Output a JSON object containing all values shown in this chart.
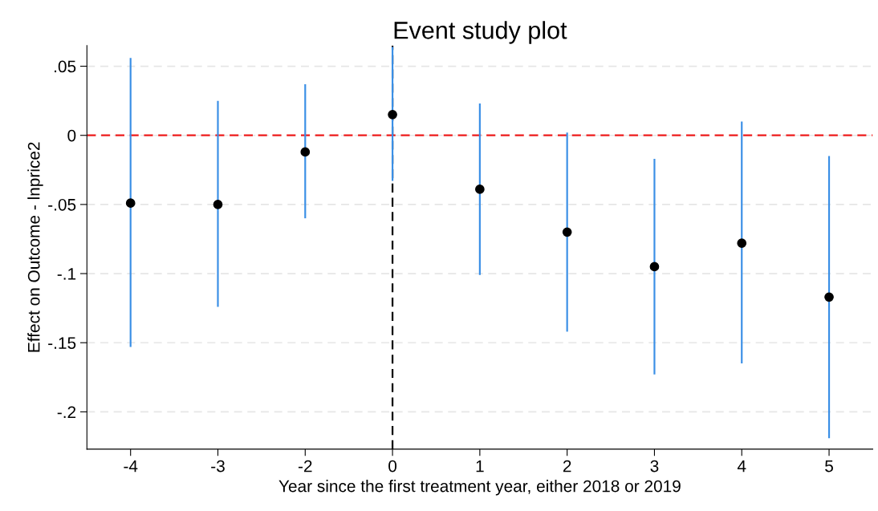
{
  "chart_data": {
    "type": "scatter",
    "title": "Event study plot",
    "xlabel": "Year since the first treatment year, either 2018 or 2019",
    "ylabel": "Effect on Outcome - lnprice2",
    "categories": [
      "-4",
      "-3",
      "-2",
      "0",
      "1",
      "2",
      "3",
      "4",
      "5"
    ],
    "series": [
      {
        "type": "bar",
        "color": "#3a8fe6",
        "base": [
          -0.153,
          -0.124,
          -0.06,
          -0.033,
          -0.101,
          -0.142,
          -0.173,
          -0.165,
          -0.219
        ],
        "values": [
          0.209,
          0.149,
          0.097,
          0.097,
          0.124,
          0.144,
          0.156,
          0.175,
          0.204
        ]
      },
      {
        "color": "#000000",
        "values": [
          -0.049,
          -0.05,
          -0.012,
          0.015,
          -0.039,
          -0.07,
          -0.095,
          -0.078,
          -0.117
        ]
      }
    ],
    "ylim": [
      -0.227,
      0.065
    ],
    "yticks": [
      {
        "value": 0.05,
        "label": ".05"
      },
      0,
      {
        "value": -0.05,
        "label": "-.05"
      },
      {
        "value": -0.1,
        "label": "-.1"
      },
      {
        "value": -0.15,
        "label": "-.15"
      },
      {
        "value": -0.2,
        "label": "-.2"
      }
    ],
    "grid": "y",
    "marker": "circle",
    "ref_lines": [
      {
        "axis": "y",
        "value": 0,
        "color": "#ee1c1c",
        "line_style": "dashed"
      },
      {
        "axis": "x",
        "value": "0",
        "color": "#000000",
        "line_style": "dashed"
      }
    ]
  }
}
